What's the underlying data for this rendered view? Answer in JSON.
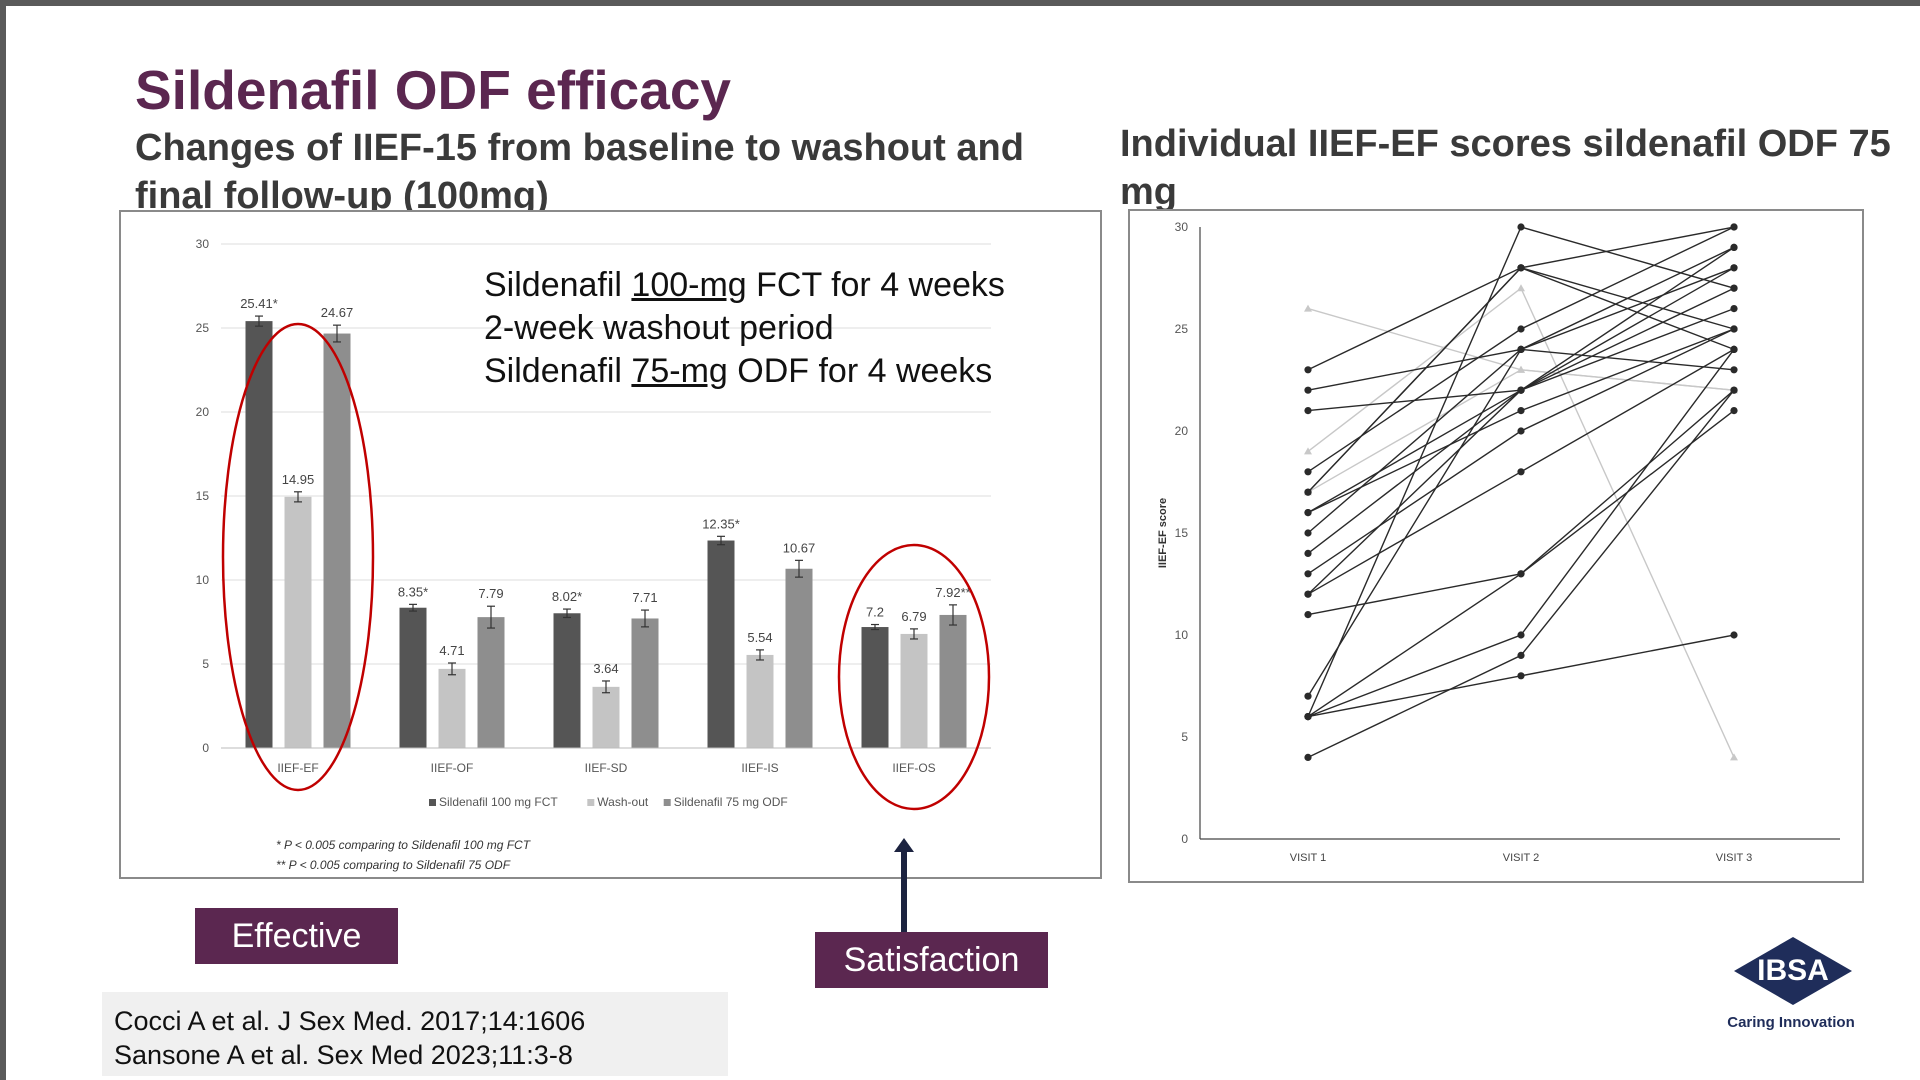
{
  "slide": {
    "title": "Sildenafil ODF efficacy",
    "subtitle_left": "Changes of IIEF-15 from baseline to washout and final follow-up (100mg)",
    "subtitle_right": "Individual IIEF-EF scores sildenafil ODF 75 mg",
    "protocol": {
      "line1_pre": "Sildenafil ",
      "line1_u": "100-mg",
      "line1_post": " FCT for 4 weeks",
      "line2": "2-week washout period",
      "line3_pre": "Sildenafil ",
      "line3_u": "75-mg",
      "line3_post": " ODF for 4 weeks"
    },
    "tag_effective": "Effective",
    "tag_satisfaction": "Satisfaction",
    "refs": [
      "Cocci A et al. J Sex Med. 2017;14:1606",
      "Sansone A et al. Sex Med 2023;11:3-8"
    ],
    "logo_text": "IBSA",
    "logo_tagline": "Caring Innovation",
    "colors": {
      "brand": "#5b2750",
      "logo": "#1f2d5a",
      "highlight": "#c00000"
    }
  },
  "chart_data": [
    {
      "type": "bar",
      "categories": [
        "IIEF-EF",
        "IIEF-OF",
        "IIEF-SD",
        "IIEF-IS",
        "IIEF-OS"
      ],
      "series": [
        {
          "name": "Sildenafil 100 mg FCT",
          "values": [
            25.41,
            8.35,
            8.02,
            12.35,
            7.2
          ],
          "labels": [
            "25.41*",
            "8.35*",
            "8.02*",
            "12.35*",
            "7.2"
          ],
          "color": "#555555"
        },
        {
          "name": "Wash-out",
          "values": [
            14.95,
            4.71,
            3.64,
            5.54,
            6.79
          ],
          "labels": [
            "14.95",
            "4.71",
            "3.64",
            "5.54",
            "6.79"
          ],
          "color": "#c4c4c4"
        },
        {
          "name": "Sildenafil 75 mg ODF",
          "values": [
            24.67,
            7.79,
            7.71,
            10.67,
            7.92
          ],
          "labels": [
            "24.67",
            "7.79",
            "7.71",
            "10.67",
            "7.92**"
          ],
          "color": "#8e8e8e"
        }
      ],
      "error": [
        [
          0.3,
          0.2,
          0.25,
          0.25,
          0.15
        ],
        [
          0.3,
          0.35,
          0.35,
          0.3,
          0.3
        ],
        [
          0.5,
          0.65,
          0.5,
          0.5,
          0.6
        ]
      ],
      "ylim": [
        0,
        30
      ],
      "yticks": [
        0,
        5,
        10,
        15,
        20,
        25,
        30
      ],
      "grid": true,
      "legend": "bottom",
      "footnotes": [
        "* P < 0.005 comparing to Sildenafil 100 mg FCT",
        "** P < 0.005  comparing to Sildenafil 75 ODF"
      ],
      "highlighted_categories": [
        "IIEF-EF",
        "IIEF-OS"
      ]
    },
    {
      "type": "line",
      "categories": [
        "VISIT 1",
        "VISIT 2",
        "VISIT 3"
      ],
      "ylabel": "IIEF-EF score",
      "ylim": [
        0,
        30
      ],
      "yticks": [
        0,
        5,
        10,
        15,
        20,
        25,
        30
      ],
      "grid": false,
      "series": [
        {
          "values": [
            23,
            28,
            30
          ]
        },
        {
          "values": [
            22,
            24,
            29
          ]
        },
        {
          "values": [
            21,
            22,
            28
          ]
        },
        {
          "values": [
            18,
            25,
            30
          ]
        },
        {
          "values": [
            17,
            28,
            24
          ]
        },
        {
          "values": [
            16,
            22,
            27
          ]
        },
        {
          "values": [
            15,
            24,
            23
          ]
        },
        {
          "values": [
            14,
            22,
            26
          ]
        },
        {
          "values": [
            13,
            20,
            25
          ]
        },
        {
          "values": [
            12,
            18,
            24
          ]
        },
        {
          "values": [
            11,
            13,
            22
          ]
        },
        {
          "values": [
            12,
            22,
            29
          ]
        },
        {
          "values": [
            7,
            24,
            28
          ]
        },
        {
          "values": [
            6,
            30,
            27
          ]
        },
        {
          "values": [
            6,
            13,
            21
          ]
        },
        {
          "values": [
            6,
            10,
            24
          ]
        },
        {
          "values": [
            4,
            9,
            22
          ]
        },
        {
          "values": [
            6,
            8,
            10
          ]
        },
        {
          "values": [
            17,
            28,
            25
          ]
        },
        {
          "values": [
            16,
            21,
            25
          ]
        },
        {
          "values": [
            26,
            23,
            22
          ],
          "muted": true
        },
        {
          "values": [
            19,
            27,
            4
          ],
          "muted": true
        },
        {
          "values": [
            17,
            23,
            22
          ],
          "muted": true
        }
      ]
    }
  ]
}
